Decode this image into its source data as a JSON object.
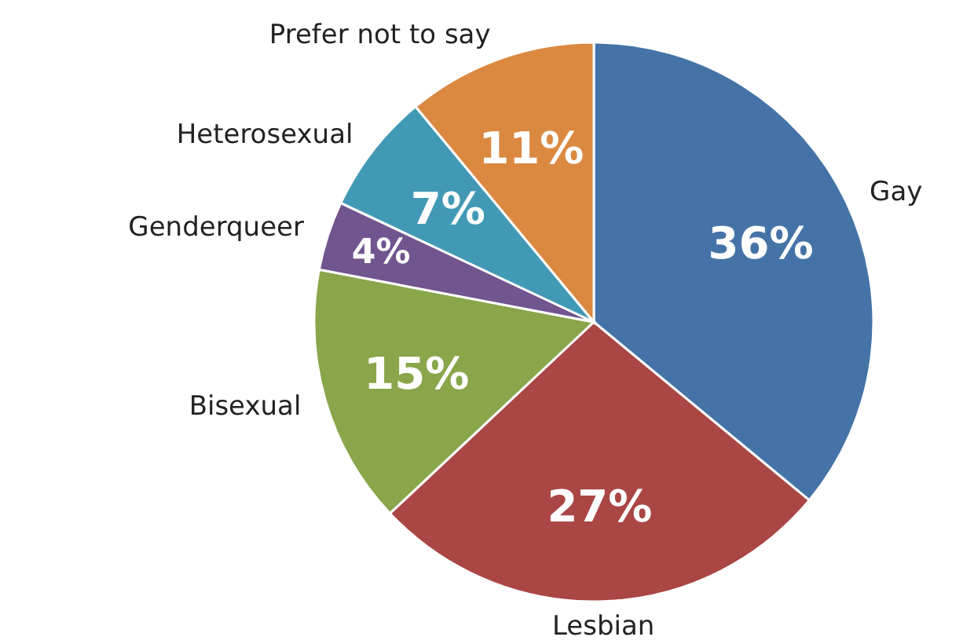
{
  "chart_data": {
    "type": "pie",
    "categories": [
      "Gay",
      "Lesbian",
      "Bisexual",
      "Genderqueer",
      "Heterosexual",
      "Prefer not to say"
    ],
    "values": [
      36,
      27,
      15,
      4,
      7,
      11
    ],
    "colors": [
      "#4573a7",
      "#aa4644",
      "#8aa64b",
      "#71558e",
      "#4299b5",
      "#db8941"
    ],
    "value_labels": [
      "36%",
      "27%",
      "15%",
      "4%",
      "7%",
      "11%"
    ]
  }
}
